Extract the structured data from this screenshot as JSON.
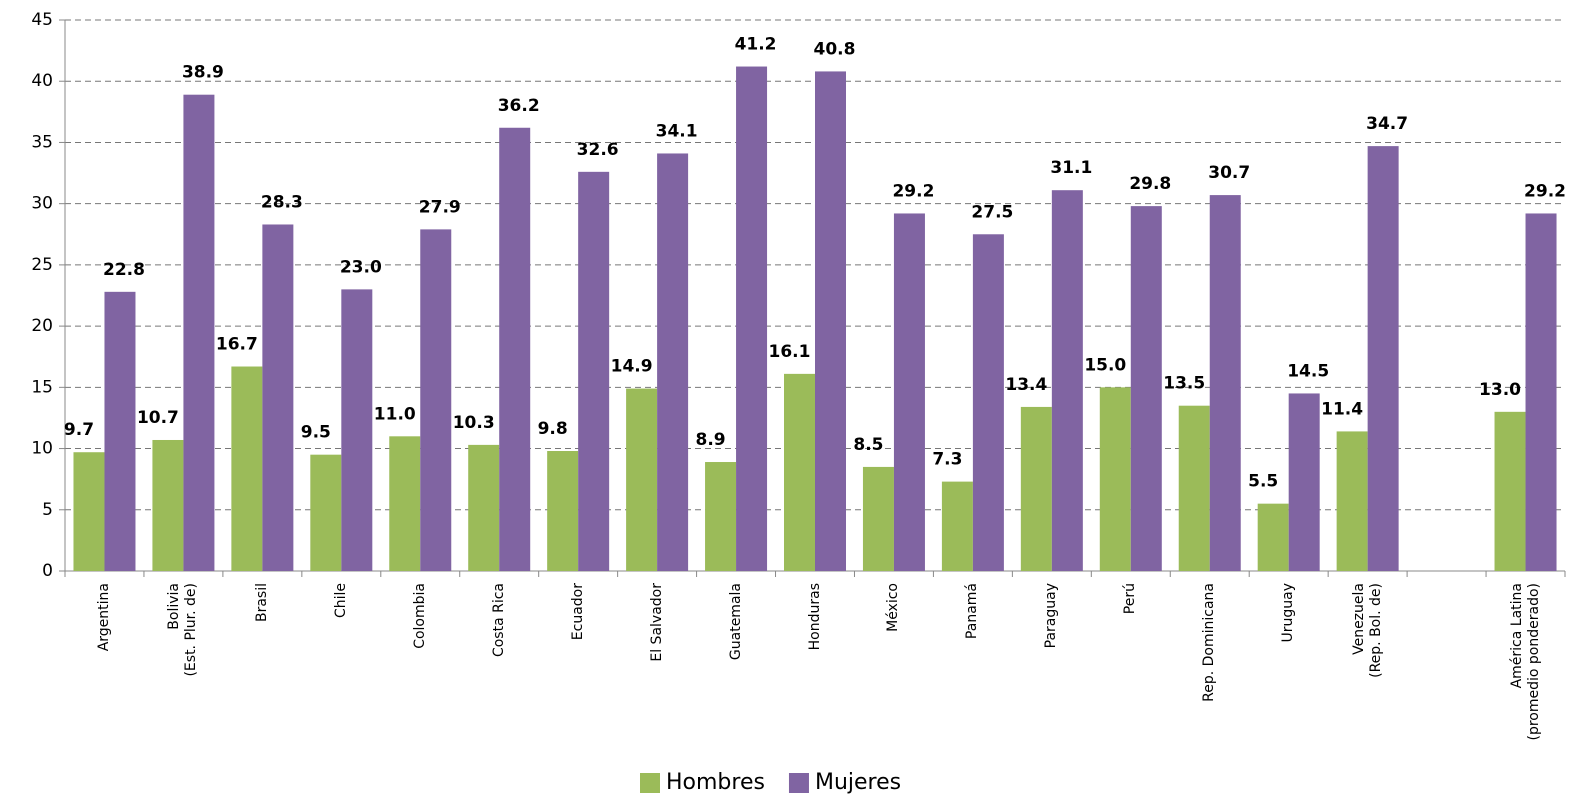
{
  "chart_data": {
    "type": "bar",
    "categories": [
      "Argentina",
      "Bolivia\n(Est. Plur. de)",
      "Brasil",
      "Chile",
      "Colombia",
      "Costa Rica",
      "Ecuador",
      "El Salvador",
      "Guatemala",
      "Honduras",
      "México",
      "Panamá",
      "Paraguay",
      "Perú",
      "Rep. Dominicana",
      "Uruguay",
      "Venezuela\n(Rep. Bol. de)",
      null,
      "América Latina\n(promedio ponderado)"
    ],
    "series": [
      {
        "name": "Hombres",
        "color": "#9bbb59",
        "values": [
          9.7,
          10.7,
          16.7,
          9.5,
          11.0,
          10.3,
          9.8,
          14.9,
          8.9,
          16.1,
          8.5,
          7.3,
          13.4,
          15.0,
          13.5,
          5.5,
          11.4,
          null,
          13.0
        ],
        "value_labels": [
          "9.7",
          "10.7",
          "16.7",
          "9.5",
          "11.0",
          "10.3",
          "9.8",
          "14.9",
          "8.9",
          "16.1",
          "8.5",
          "7.3",
          "13.4",
          "15.0",
          "13.5",
          "5.5",
          "11.4",
          null,
          "13.0"
        ]
      },
      {
        "name": "Mujeres",
        "color": "#8064a2",
        "values": [
          22.8,
          38.9,
          28.3,
          23.0,
          27.9,
          36.2,
          32.6,
          34.1,
          41.2,
          40.8,
          29.2,
          27.5,
          31.1,
          29.8,
          30.7,
          14.5,
          34.7,
          null,
          29.2
        ],
        "value_labels": [
          "22.8",
          "38.9",
          "28.3",
          "23.0",
          "27.9",
          "36.2",
          "32.6",
          "34.1",
          "41.2",
          "40.8",
          "29.2",
          "27.5",
          "31.1",
          "29.8",
          "30.7",
          "14.5",
          "34.7",
          null,
          "29.2"
        ]
      }
    ],
    "ylim": [
      0,
      45
    ],
    "yticks": [
      0,
      5,
      10,
      15,
      20,
      25,
      30,
      35,
      40,
      45
    ],
    "grid": true,
    "legend": "bottom"
  }
}
